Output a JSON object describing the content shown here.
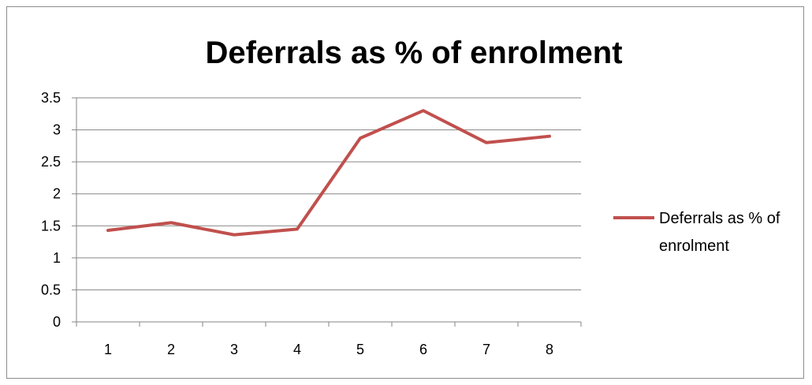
{
  "chart_data": {
    "type": "line",
    "title": "Deferrals as % of enrolment",
    "xlabel": "",
    "ylabel": "",
    "categories": [
      "1",
      "2",
      "3",
      "4",
      "5",
      "6",
      "7",
      "8"
    ],
    "series": [
      {
        "name": "Deferrals as % of enrolment",
        "values": [
          1.43,
          1.55,
          1.36,
          1.45,
          2.87,
          3.3,
          2.8,
          2.9
        ],
        "color": "#c0504d"
      }
    ],
    "ylim": [
      0,
      3.5
    ],
    "yticks": [
      "0",
      "0.5",
      "1",
      "1.5",
      "2",
      "2.5",
      "3",
      "3.5"
    ],
    "grid": true,
    "legend": {
      "position": "right",
      "lines": [
        "Deferrals as % of",
        "enrolment"
      ]
    }
  }
}
